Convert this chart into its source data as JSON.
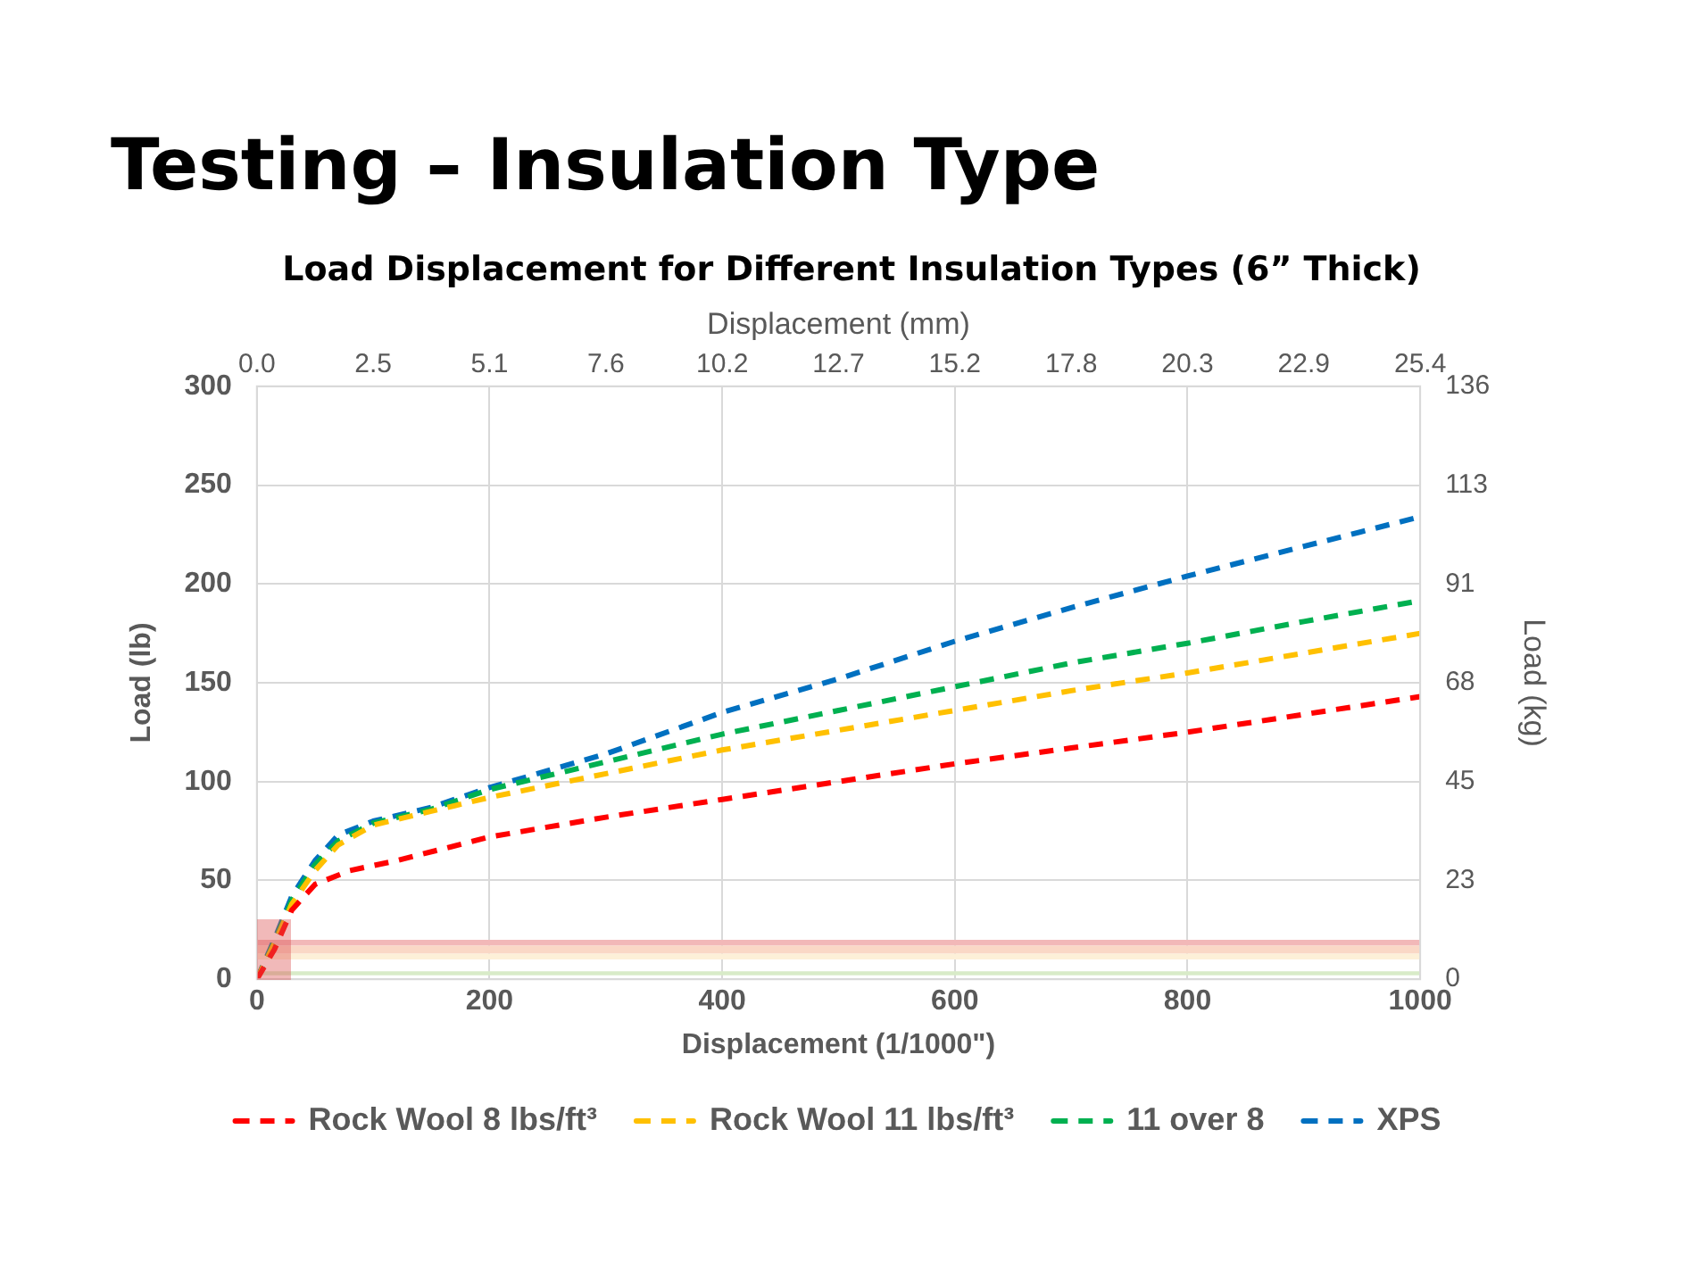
{
  "chart_data": {
    "type": "line",
    "title": "Testing – Insulation Type",
    "subtitle": "Load Displacement for Different Insulation Types (6” Thick)",
    "xlabel": "Displacement (1/1000\")",
    "ylabel": "Load (lb)",
    "y2label": "Load (kg)",
    "x2label": "Displacement (mm)",
    "xlim": [
      0,
      1000
    ],
    "xticks": [
      0,
      200,
      400,
      600,
      800,
      1000
    ],
    "ylim": [
      0,
      300
    ],
    "yticks": [
      0,
      50,
      100,
      150,
      200,
      250,
      300
    ],
    "x2lim": [
      0,
      25.4
    ],
    "x2ticks": [
      {
        "value": 0,
        "label": "0.0"
      },
      {
        "value": 2.54,
        "label": "2.5"
      },
      {
        "value": 5.08,
        "label": "5.1"
      },
      {
        "value": 7.62,
        "label": "7.6"
      },
      {
        "value": 10.16,
        "label": "10.2"
      },
      {
        "value": 12.7,
        "label": "12.7"
      },
      {
        "value": 15.24,
        "label": "15.2"
      },
      {
        "value": 17.78,
        "label": "17.8"
      },
      {
        "value": 20.32,
        "label": "20.3"
      },
      {
        "value": 22.86,
        "label": "22.9"
      },
      {
        "value": 25.4,
        "label": "25.4"
      }
    ],
    "y2lim": [
      0,
      136.08
    ],
    "y2ticks": [
      {
        "value": 0,
        "label": "0"
      },
      {
        "value": 22.68,
        "label": "23"
      },
      {
        "value": 45.36,
        "label": "45"
      },
      {
        "value": 68.04,
        "label": "68"
      },
      {
        "value": 90.72,
        "label": "91"
      },
      {
        "value": 113.4,
        "label": "113"
      },
      {
        "value": 136.08,
        "label": "136"
      }
    ],
    "grid": true,
    "legend": "bottom",
    "line_style": "dashed",
    "bands": [
      {
        "axis": "y",
        "from": 17,
        "to": 20,
        "color": "#f2b8b8"
      },
      {
        "axis": "y",
        "from": 13,
        "to": 17,
        "color": "#fad8c6"
      },
      {
        "axis": "y",
        "from": 10,
        "to": 13,
        "color": "#fdf0d8"
      },
      {
        "axis": "y",
        "from": 2,
        "to": 4,
        "color": "#d8ebc8"
      }
    ],
    "series": [
      {
        "name": "Rock Wool 8 lbs/ft³",
        "color": "#ff0000",
        "x": [
          0,
          15,
          30,
          50,
          80,
          120,
          200,
          300,
          400,
          500,
          600,
          700,
          800,
          900,
          1000
        ],
        "values": [
          0,
          15,
          35,
          48,
          55,
          60,
          72,
          82,
          91,
          100,
          109,
          117,
          125,
          134,
          143
        ]
      },
      {
        "name": "Rock Wool 11 lbs/ft³",
        "color": "#ffc000",
        "x": [
          0,
          15,
          30,
          50,
          70,
          100,
          150,
          200,
          300,
          400,
          500,
          600,
          700,
          800,
          900,
          1000
        ],
        "values": [
          0,
          18,
          38,
          55,
          68,
          78,
          85,
          92,
          104,
          116,
          126,
          136,
          146,
          155,
          165,
          175
        ]
      },
      {
        "name": "11 over 8",
        "color": "#00b050",
        "x": [
          0,
          15,
          30,
          50,
          70,
          100,
          150,
          200,
          300,
          400,
          500,
          600,
          700,
          800,
          900,
          995
        ],
        "values": [
          0,
          19,
          40,
          58,
          70,
          79,
          86,
          96,
          110,
          124,
          136,
          148,
          160,
          170,
          181,
          191
        ]
      },
      {
        "name": "XPS",
        "color": "#0070c0",
        "x": [
          0,
          15,
          30,
          50,
          70,
          100,
          150,
          200,
          300,
          400,
          500,
          600,
          700,
          800,
          900,
          1000
        ],
        "values": [
          0,
          20,
          42,
          60,
          73,
          80,
          87,
          97,
          114,
          135,
          152,
          171,
          188,
          204,
          219,
          234
        ]
      }
    ]
  }
}
